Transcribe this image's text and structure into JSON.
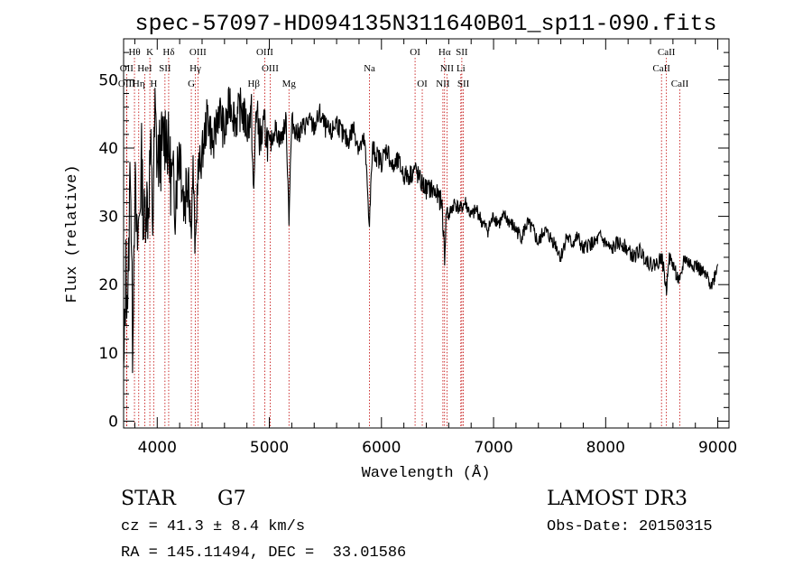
{
  "chart_data": {
    "type": "line",
    "title": "spec-57097-HD094135N311640B01_sp11-090.fits",
    "xlabel": "Wavelength (Å)",
    "ylabel": "Flux (relative)",
    "xlim": [
      3700,
      9100
    ],
    "ylim": [
      -1,
      56
    ],
    "xticks": [
      4000,
      5000,
      6000,
      7000,
      8000,
      9000
    ],
    "yticks": [
      0,
      10,
      20,
      30,
      40,
      50
    ],
    "grid": false,
    "series": [
      {
        "name": "flux",
        "x": [
          3700,
          3720,
          3740,
          3760,
          3780,
          3800,
          3820,
          3840,
          3860,
          3880,
          3900,
          3920,
          3940,
          3960,
          3980,
          4000,
          4040,
          4080,
          4120,
          4160,
          4200,
          4240,
          4280,
          4300,
          4320,
          4340,
          4360,
          4400,
          4450,
          4500,
          4550,
          4600,
          4650,
          4700,
          4750,
          4800,
          4840,
          4861,
          4880,
          4920,
          4960,
          5000,
          5050,
          5100,
          5150,
          5175,
          5200,
          5250,
          5300,
          5350,
          5400,
          5450,
          5500,
          5550,
          5600,
          5650,
          5700,
          5750,
          5800,
          5850,
          5893,
          5920,
          5950,
          6000,
          6050,
          6100,
          6150,
          6200,
          6250,
          6300,
          6350,
          6400,
          6450,
          6500,
          6540,
          6563,
          6580,
          6600,
          6650,
          6700,
          6750,
          6800,
          6850,
          6900,
          6950,
          7000,
          7050,
          7100,
          7150,
          7200,
          7250,
          7300,
          7350,
          7400,
          7450,
          7500,
          7550,
          7600,
          7650,
          7700,
          7750,
          7800,
          7850,
          7900,
          7950,
          8000,
          8050,
          8100,
          8150,
          8200,
          8250,
          8300,
          8350,
          8400,
          8450,
          8498,
          8520,
          8542,
          8560,
          8600,
          8662,
          8700,
          8750,
          8800,
          8850,
          8900,
          8950,
          9000
        ],
        "y": [
          5,
          22,
          18,
          40,
          12,
          35,
          25,
          30,
          38,
          28,
          33,
          31,
          40,
          29,
          45,
          38,
          40,
          43,
          36,
          33,
          41,
          32,
          38,
          28,
          37,
          24,
          36,
          39,
          45,
          40,
          46,
          42,
          47,
          44,
          46,
          43,
          45,
          32,
          46,
          41,
          43,
          40,
          43,
          41,
          44,
          30,
          44,
          42,
          43,
          44,
          43,
          45,
          43,
          42,
          44,
          42,
          41,
          43,
          40,
          41,
          29,
          40,
          39,
          38,
          40,
          37,
          38,
          36,
          36,
          37,
          35,
          34,
          34,
          33,
          32,
          24,
          31,
          30,
          32,
          31,
          32,
          30,
          31,
          29,
          28,
          30,
          29,
          30,
          29,
          28,
          27,
          29,
          28,
          26,
          28,
          27,
          26,
          24,
          27,
          26,
          27,
          25,
          26,
          26,
          27,
          26,
          25,
          26,
          26,
          25,
          24,
          25,
          24,
          23,
          23,
          24,
          22,
          19,
          24,
          23,
          20,
          24,
          23,
          23,
          22,
          21,
          20,
          23
        ]
      }
    ],
    "line_markers": [
      {
        "label": "Hθ",
        "wavelength": 3797,
        "row": 1
      },
      {
        "label": "K",
        "wavelength": 3934,
        "row": 1
      },
      {
        "label": "Hδ",
        "wavelength": 4102,
        "row": 1
      },
      {
        "label": "OIII",
        "wavelength": 4363,
        "row": 1
      },
      {
        "label": "OIII",
        "wavelength": 4959,
        "row": 1
      },
      {
        "label": "OI",
        "wavelength": 6300,
        "row": 1
      },
      {
        "label": "Hα",
        "wavelength": 6563,
        "row": 1
      },
      {
        "label": "SII",
        "wavelength": 6717,
        "row": 1
      },
      {
        "label": "CaII",
        "wavelength": 8542,
        "row": 1
      },
      {
        "label": "OII",
        "wavelength": 3727,
        "row": 2
      },
      {
        "label": "HeI",
        "wavelength": 3889,
        "row": 2
      },
      {
        "label": "SII",
        "wavelength": 4069,
        "row": 2
      },
      {
        "label": "Hγ",
        "wavelength": 4340,
        "row": 2
      },
      {
        "label": "OIII",
        "wavelength": 5007,
        "row": 2
      },
      {
        "label": "Na",
        "wavelength": 5893,
        "row": 2
      },
      {
        "label": "NII",
        "wavelength": 6584,
        "row": 2
      },
      {
        "label": "Li",
        "wavelength": 6708,
        "row": 2
      },
      {
        "label": "CaII",
        "wavelength": 8498,
        "row": 2
      },
      {
        "label": "OIII",
        "wavelength": 3727,
        "row": 3
      },
      {
        "label": "Hη",
        "wavelength": 3835,
        "row": 3
      },
      {
        "label": "H",
        "wavelength": 3968,
        "row": 3
      },
      {
        "label": "G",
        "wavelength": 4304,
        "row": 3
      },
      {
        "label": "Hβ",
        "wavelength": 4861,
        "row": 3
      },
      {
        "label": "Mg",
        "wavelength": 5175,
        "row": 3
      },
      {
        "label": "OI",
        "wavelength": 6364,
        "row": 3
      },
      {
        "label": "NII",
        "wavelength": 6548,
        "row": 3
      },
      {
        "label": "SII",
        "wavelength": 6731,
        "row": 3
      },
      {
        "label": "CaII",
        "wavelength": 8662,
        "row": 3
      }
    ]
  },
  "info": {
    "object_type": "STAR",
    "subclass": "G7",
    "survey": "LAMOST DR3",
    "cz": "cz = 41.3 ± 8.4 km/s",
    "obs_date": "Obs-Date: 20150315",
    "coords": "RA = 145.11494, DEC =  33.01586"
  },
  "colors": {
    "axis": "#000000",
    "spectrum": "#000000",
    "marker_line": "#c00000"
  }
}
